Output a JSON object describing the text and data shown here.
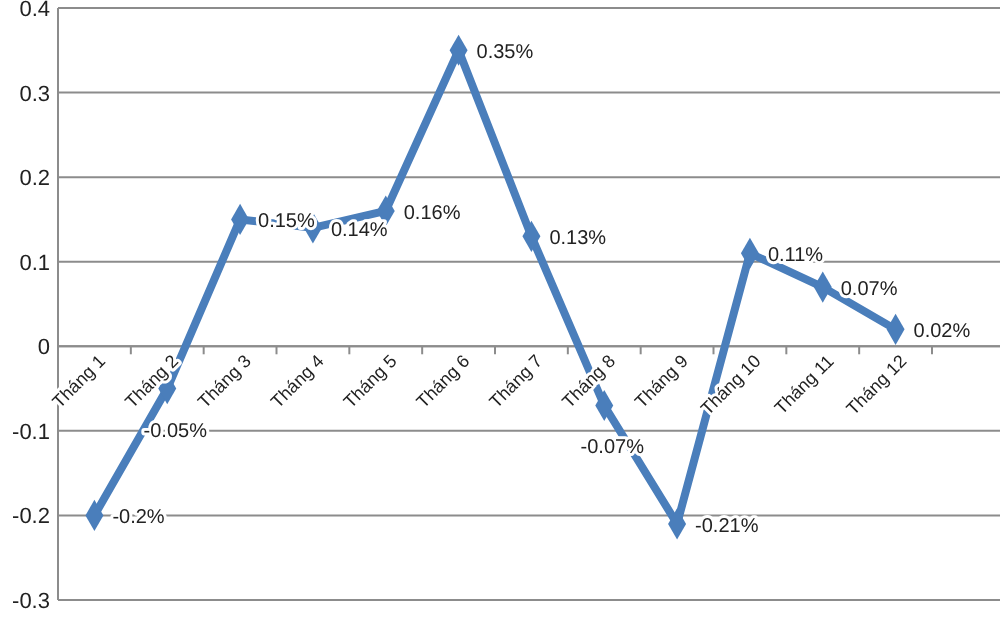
{
  "chart_data": {
    "type": "line",
    "categories": [
      "Tháng 1",
      "Tháng 2",
      "Tháng 3",
      "Tháng 4",
      "Tháng 5",
      "Tháng 6",
      "Tháng 7",
      "Tháng 8",
      "Tháng 9",
      "Tháng 10",
      "Tháng 11",
      "Tháng 12"
    ],
    "series": [
      {
        "color": "#4a7ebb",
        "values": [
          -0.2,
          -0.05,
          0.15,
          0.14,
          0.16,
          0.35,
          0.13,
          -0.07,
          -0.21,
          0.11,
          0.07,
          0.02
        ],
        "value_labels": [
          "-0.2%",
          "-0.05%",
          "0.15%",
          "0.14%",
          "0.16%",
          "0.35%",
          "0.13%",
          "-0.07%",
          "-0.21%",
          "0.11%",
          "0.07%",
          "0.02%"
        ]
      }
    ],
    "ylim": [
      -0.3,
      0.4
    ],
    "yticks": [
      -0.3,
      -0.2,
      -0.1,
      0,
      0.1,
      0.2,
      0.3,
      0.4
    ],
    "grid": "y",
    "marker": "diamond",
    "line_style": "solid"
  }
}
